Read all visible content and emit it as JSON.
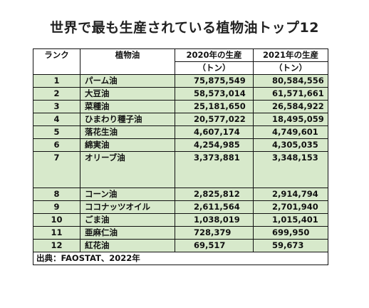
{
  "title": "世界で最も生産されている植物油トップ12",
  "headers": {
    "rank": "ランク",
    "oil": "植物油",
    "year2020": "2020年の生産",
    "year2021": "2021年の生産",
    "unit": "（トン）"
  },
  "rows": [
    {
      "rank": "1",
      "oil": "パーム油",
      "y2020": "75,875,549",
      "y2021": "80,584,556"
    },
    {
      "rank": "2",
      "oil": "大豆油",
      "y2020": "58,573,014",
      "y2021": "61,571,661"
    },
    {
      "rank": "3",
      "oil": "菜種油",
      "y2020": "25,181,650",
      "y2021": "26,584,922"
    },
    {
      "rank": "4",
      "oil": "ひまわり種子油",
      "y2020": "20,577,022",
      "y2021": "18,495,059"
    },
    {
      "rank": "5",
      "oil": "落花生油",
      "y2020": "4,607,174",
      "y2021": "4,749,601"
    },
    {
      "rank": "6",
      "oil": "綿実油",
      "y2020": "4,254,985",
      "y2021": "4,305,035"
    },
    {
      "rank": "7",
      "oil": "オリーブ油",
      "y2020": "3,373,881",
      "y2021": "3,348,153"
    },
    {
      "rank": "8",
      "oil": "コーン油",
      "y2020": "2,825,812",
      "y2021": "2,914,794"
    },
    {
      "rank": "9",
      "oil": "ココナッツオイル",
      "y2020": "2,611,564",
      "y2021": "2,701,940"
    },
    {
      "rank": "10",
      "oil": "ごま油",
      "y2020": "1,038,019",
      "y2021": "1,015,401"
    },
    {
      "rank": "11",
      "oil": "亜麻仁油",
      "y2020": "728,379",
      "y2021": "699,950"
    },
    {
      "rank": "12",
      "oil": "紅花油",
      "y2020": "69,517",
      "y2021": "59,673"
    }
  ],
  "source": "出典：FAOSTAT、2022年",
  "colors": {
    "row_background": "#d7e9cb",
    "border": "#111111"
  }
}
